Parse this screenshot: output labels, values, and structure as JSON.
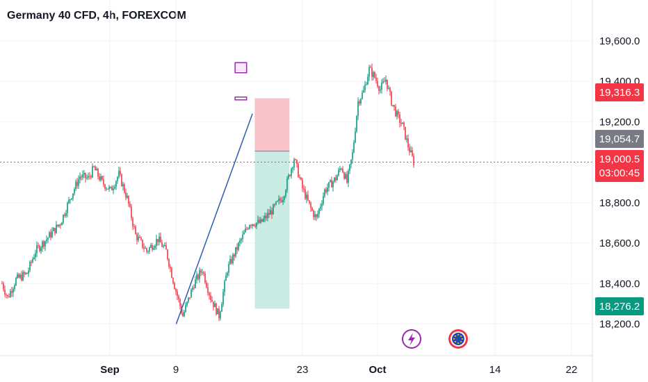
{
  "header": {
    "title": "Germany 40 CFD, 4h, FOREXCOM"
  },
  "colors": {
    "up": "#089981",
    "down": "#f23645",
    "grid": "#f0f3fa",
    "trendline": "#2a5caa",
    "rect": "#9c27b0",
    "rectFill": "#f3e1f6",
    "stop": "#f7c5c9",
    "target": "#c9ebe3",
    "entryLine": "#787b86"
  },
  "badges": {
    "stop": "19,316.3",
    "entry": "19,054.7",
    "current": "19,000.5",
    "countdown": "03:00:45",
    "target": "18,276.2"
  },
  "icons": {
    "event_left": "lightning-icon",
    "event_right": "flag-eu-icon"
  },
  "chart_data": {
    "type": "candlestick",
    "title": "Germany 40 CFD, 4h, FOREXCOM",
    "y_ticks": [
      "19,600.0",
      "19,400.0",
      "19,200.0",
      "18,800.0",
      "18,600.0",
      "18,400.0",
      "18,200.0"
    ],
    "y_tick_values": [
      19600,
      19400,
      19200,
      18800,
      18600,
      18400,
      18200
    ],
    "x_ticks": [
      "Sep",
      "9",
      "23",
      "Oct",
      "14",
      "22"
    ],
    "ylim": [
      18100,
      19750
    ],
    "anchors": [
      [
        0,
        18400
      ],
      [
        4,
        18330
      ],
      [
        10,
        18420
      ],
      [
        18,
        18450
      ],
      [
        24,
        18560
      ],
      [
        32,
        18620
      ],
      [
        42,
        18700
      ],
      [
        50,
        18840
      ],
      [
        56,
        18930
      ],
      [
        62,
        18920
      ],
      [
        66,
        18970
      ],
      [
        72,
        18900
      ],
      [
        78,
        18860
      ],
      [
        84,
        18940
      ],
      [
        90,
        18820
      ],
      [
        96,
        18640
      ],
      [
        104,
        18560
      ],
      [
        112,
        18620
      ],
      [
        118,
        18560
      ],
      [
        124,
        18390
      ],
      [
        130,
        18240
      ],
      [
        138,
        18400
      ],
      [
        144,
        18470
      ],
      [
        150,
        18330
      ],
      [
        156,
        18240
      ],
      [
        162,
        18470
      ],
      [
        170,
        18590
      ],
      [
        178,
        18700
      ],
      [
        186,
        18700
      ],
      [
        194,
        18760
      ],
      [
        202,
        18830
      ],
      [
        210,
        19020
      ],
      [
        216,
        18870
      ],
      [
        222,
        18770
      ],
      [
        226,
        18720
      ],
      [
        232,
        18860
      ],
      [
        240,
        18920
      ],
      [
        244,
        18980
      ],
      [
        248,
        18900
      ],
      [
        252,
        19040
      ],
      [
        256,
        19300
      ],
      [
        260,
        19350
      ],
      [
        264,
        19460
      ],
      [
        268,
        19420
      ],
      [
        272,
        19360
      ],
      [
        276,
        19410
      ],
      [
        280,
        19300
      ],
      [
        284,
        19230
      ],
      [
        288,
        19180
      ],
      [
        292,
        19080
      ],
      [
        296,
        19000
      ]
    ],
    "drawings": {
      "trendline": {
        "x1": 6,
        "y1": 18200,
        "x2": 12.9,
        "y2": 19240
      },
      "resistance_box": {
        "x1": 11.33,
        "x2": 12.37,
        "y_top": 19492,
        "y_bottom": 19442
      },
      "support_line": {
        "x1": 11.33,
        "x2": 12.37,
        "y_top": 19322,
        "y_bottom": 19308
      },
      "position": {
        "x1": 13.11,
        "x2": 16.25,
        "entry": 19054.7,
        "stop": 19316.3,
        "target": 18276.2
      }
    }
  }
}
